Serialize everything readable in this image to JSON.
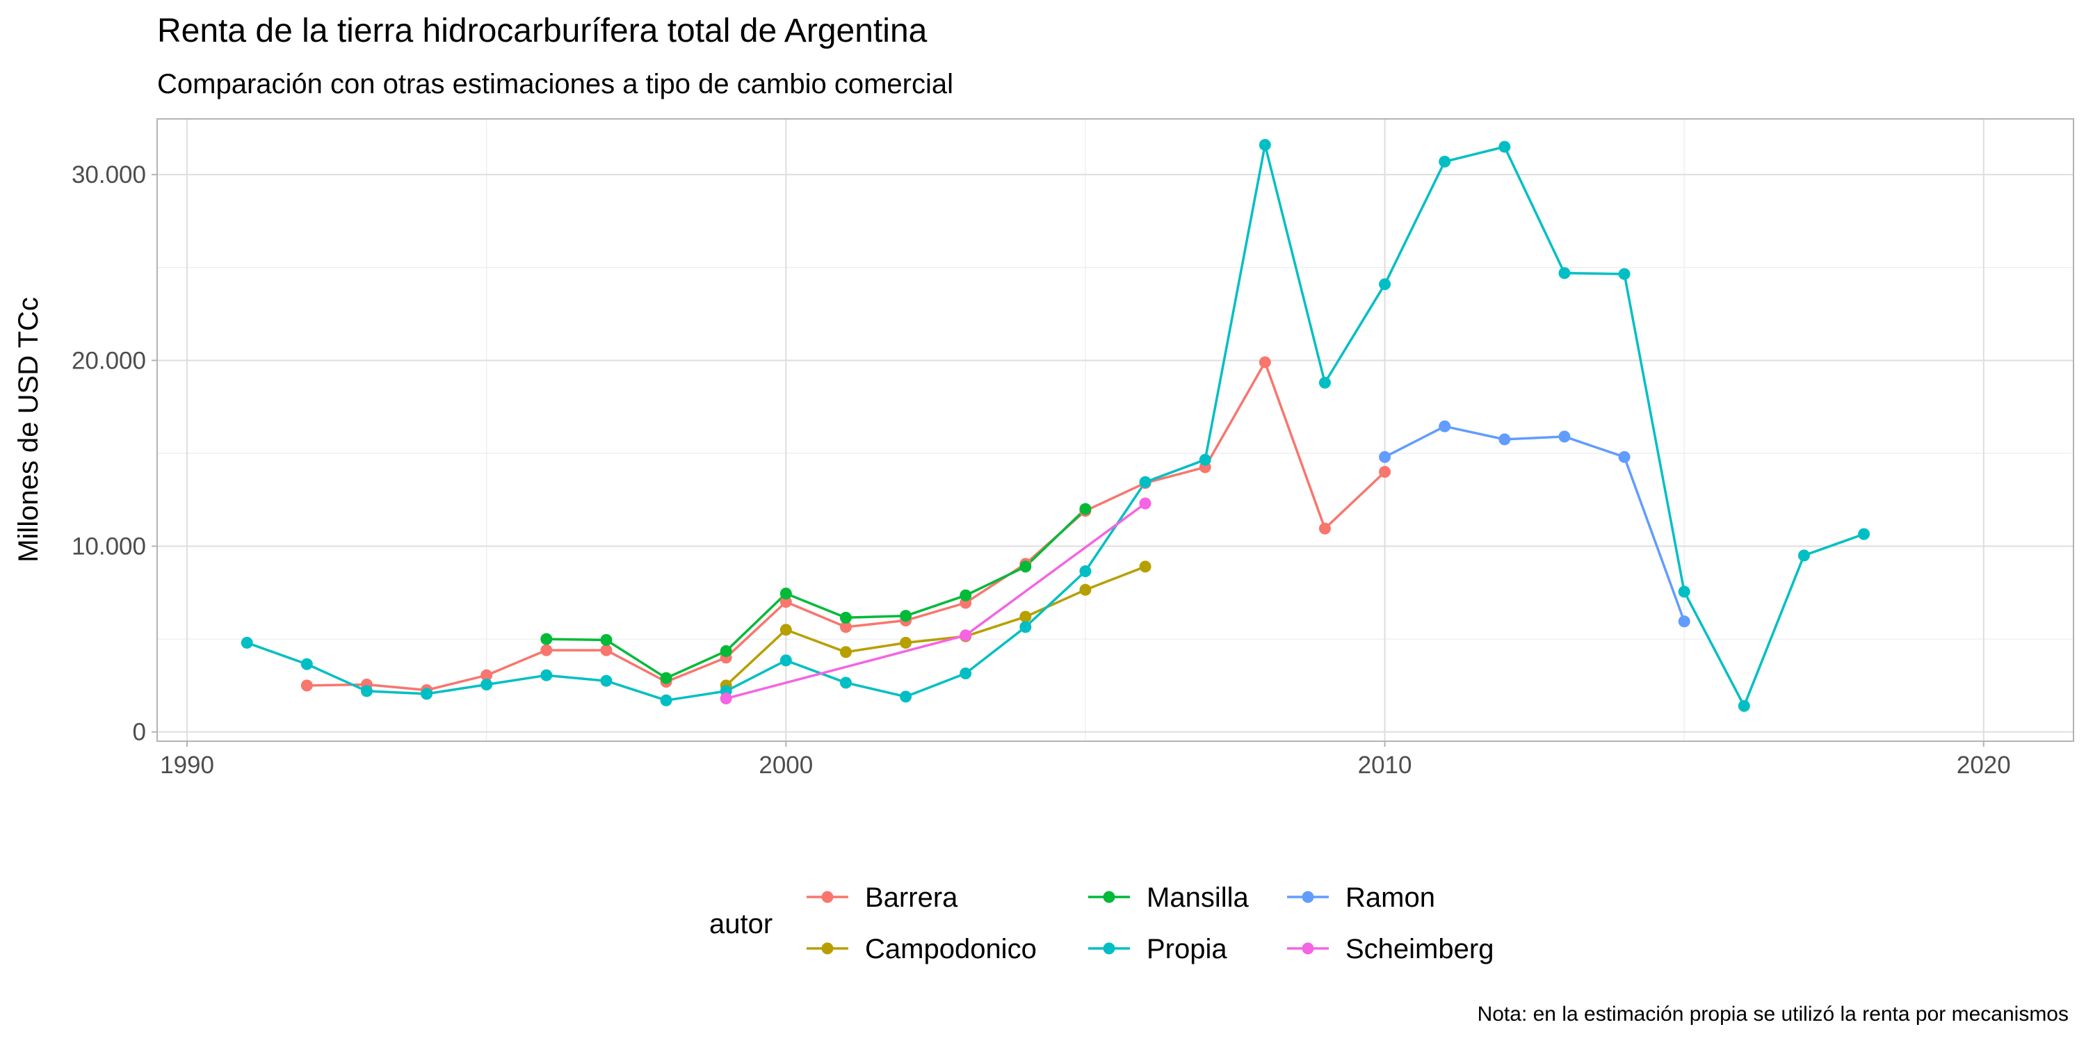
{
  "chart_data": {
    "type": "line",
    "title": "Renta de la tierra hidrocarburífera total de Argentina",
    "subtitle": "Comparación con otras estimaciones a tipo de cambio comercial",
    "ylabel": "Millones de USD TCc",
    "caption": "Nota: en la estimación propia se utilizó la renta por mecanismos",
    "legend_title": "autor",
    "legend_position": "bottom",
    "grid": true,
    "xlim": [
      1989.5,
      2021.5
    ],
    "ylim": [
      -500,
      33000
    ],
    "x_ticks": [
      1990,
      2000,
      2010,
      2020
    ],
    "x_tick_labels": [
      "1990",
      "2000",
      "2010",
      "2020"
    ],
    "y_ticks": [
      0,
      10000,
      20000,
      30000
    ],
    "y_tick_labels": [
      "0",
      "10.000",
      "20.000",
      "30.000"
    ],
    "series": [
      {
        "name": "Barrera",
        "color": "#F8766D",
        "x": [
          1992,
          1993,
          1994,
          1995,
          1996,
          1997,
          1998,
          1999,
          2000,
          2001,
          2002,
          2003,
          2004,
          2005,
          2006,
          2007,
          2008,
          2009,
          2010
        ],
        "values": [
          2500,
          2550,
          2250,
          3050,
          4400,
          4400,
          2700,
          4000,
          7000,
          5650,
          6000,
          6950,
          9050,
          11900,
          13400,
          14250,
          19900,
          10950,
          14000
        ]
      },
      {
        "name": "Campodonico",
        "color": "#B79F00",
        "x": [
          1999,
          2000,
          2001,
          2002,
          2003,
          2004,
          2005,
          2006
        ],
        "values": [
          2500,
          5500,
          4300,
          4800,
          5150,
          6200,
          7650,
          8900
        ]
      },
      {
        "name": "Mansilla",
        "color": "#00BA38",
        "x": [
          1996,
          1997,
          1998,
          1999,
          2000,
          2001,
          2002,
          2003,
          2004,
          2005
        ],
        "values": [
          5000,
          4950,
          2900,
          4350,
          7450,
          6150,
          6250,
          7350,
          8900,
          12000
        ]
      },
      {
        "name": "Propia",
        "color": "#00BFC4",
        "x": [
          1991,
          1992,
          1993,
          1994,
          1995,
          1996,
          1997,
          1998,
          1999,
          2000,
          2001,
          2002,
          2003,
          2004,
          2005,
          2006,
          2007,
          2008,
          2009,
          2010,
          2011,
          2012,
          2013,
          2014,
          2015,
          2016,
          2017,
          2018
        ],
        "values": [
          4800,
          3650,
          2200,
          2050,
          2550,
          3050,
          2750,
          1700,
          2200,
          3850,
          2650,
          1900,
          3150,
          5650,
          8650,
          13450,
          14650,
          31600,
          18800,
          24100,
          30700,
          31500,
          24700,
          24650,
          7550,
          1400,
          9500,
          10650
        ]
      },
      {
        "name": "Ramon",
        "color": "#619CFF",
        "x": [
          2010,
          2011,
          2012,
          2013,
          2014,
          2015
        ],
        "values": [
          14800,
          16450,
          15750,
          15900,
          14800,
          5950
        ]
      },
      {
        "name": "Scheimberg",
        "color": "#F564E3",
        "x": [
          1999,
          2003,
          2006
        ],
        "values": [
          1800,
          5200,
          12300
        ]
      }
    ]
  }
}
